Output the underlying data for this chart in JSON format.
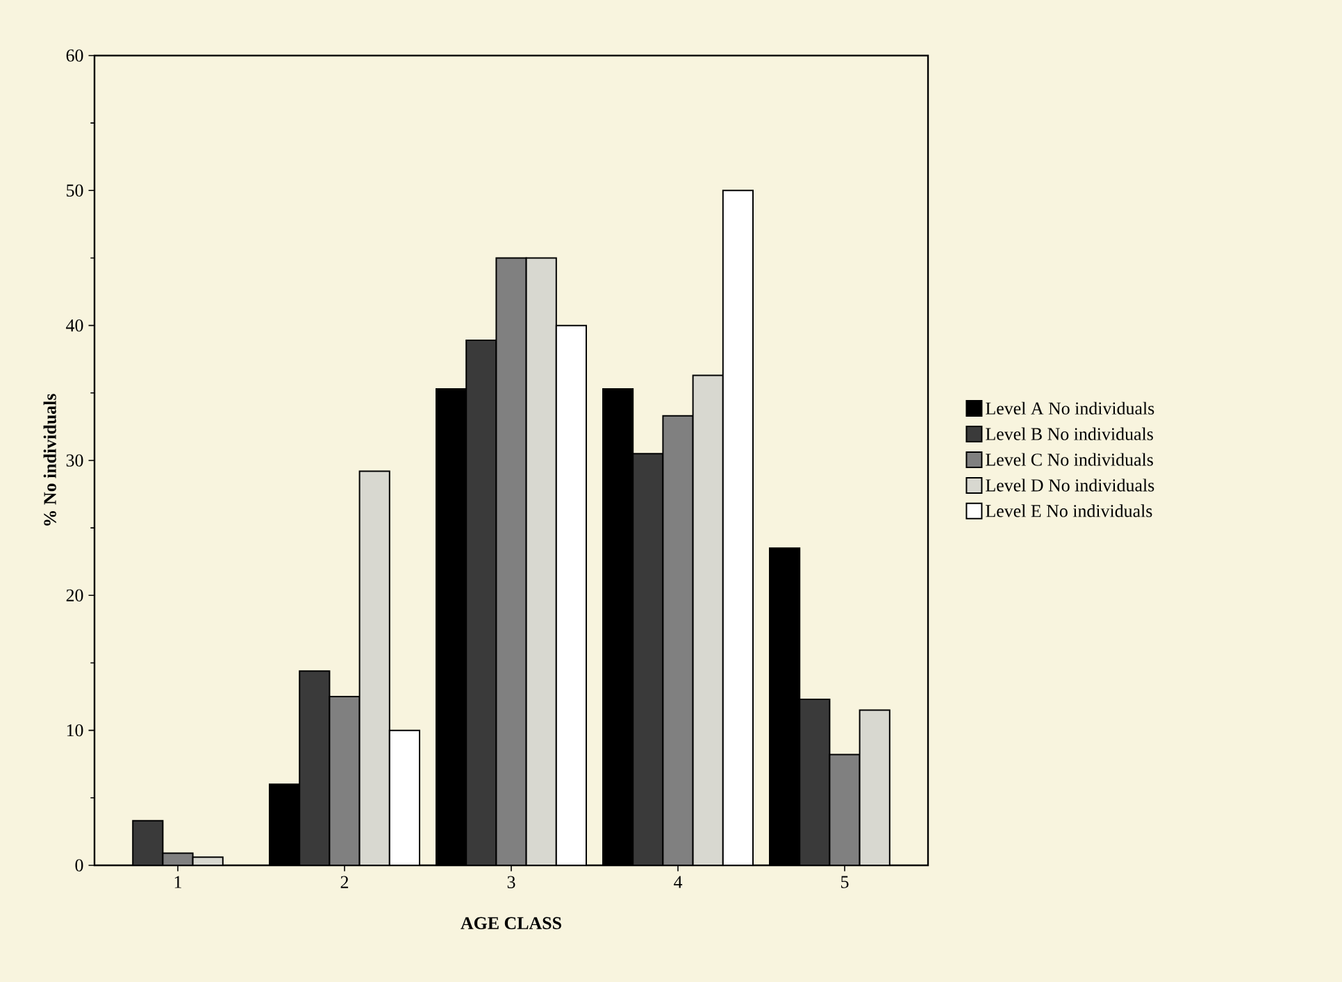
{
  "chart_data": {
    "type": "bar",
    "xlabel": "AGE CLASS",
    "ylabel": "% No individuals",
    "categories": [
      "1",
      "2",
      "3",
      "4",
      "5"
    ],
    "series": [
      {
        "name": "Level A No individuals",
        "color": "#000000",
        "values": [
          0,
          6.0,
          35.3,
          35.3,
          23.5
        ]
      },
      {
        "name": "Level B No individuals",
        "color": "#3a3a3a",
        "values": [
          3.3,
          14.4,
          38.9,
          30.5,
          12.3
        ]
      },
      {
        "name": "Level C No individuals",
        "color": "#808080",
        "values": [
          0.9,
          12.5,
          45,
          33.3,
          8.2
        ]
      },
      {
        "name": "Level D No individuals",
        "color": "#d8d8d0",
        "values": [
          0.6,
          29.2,
          45,
          36.3,
          11.5
        ]
      },
      {
        "name": "Level E No individuals",
        "color": "#ffffff",
        "values": [
          0,
          10,
          40,
          50,
          0
        ]
      }
    ],
    "ylim": [
      0,
      60
    ],
    "yticks": [
      0,
      10,
      20,
      30,
      40,
      50,
      60
    ],
    "grid": false,
    "legend": "right"
  }
}
